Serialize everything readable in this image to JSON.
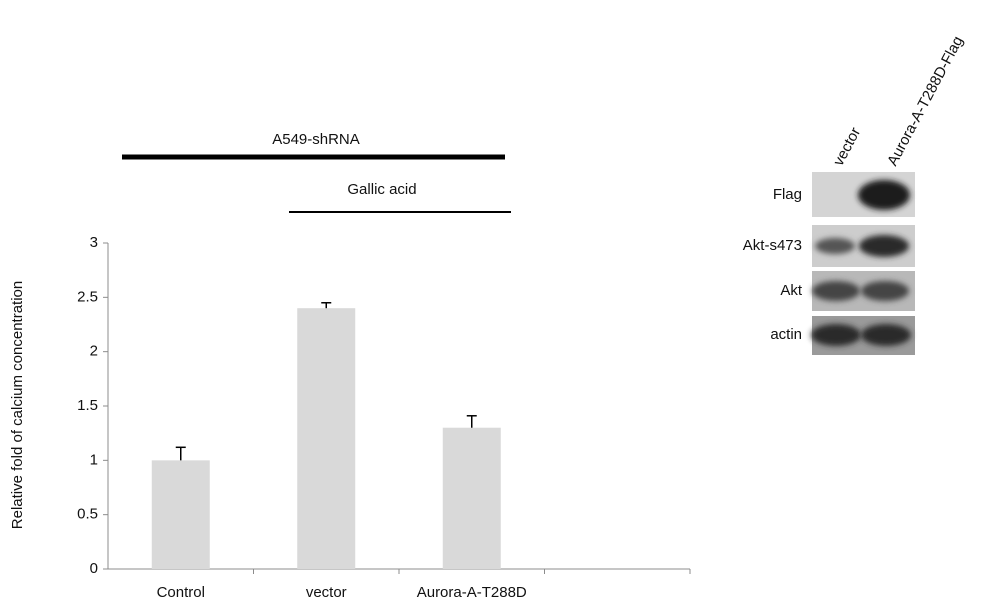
{
  "chart_data": {
    "type": "bar",
    "y_label": "Relative fold of calcium concentration",
    "categories": [
      "Control",
      "vector",
      "Aurora-A-T288D",
      null
    ],
    "values": [
      1,
      2.4,
      1.3,
      null
    ],
    "error": [
      0.12,
      0.05,
      0.11,
      null
    ],
    "color": "#d9d9d9",
    "ylim": [
      0,
      3
    ],
    "yticks": [
      0,
      0.5,
      1,
      1.5,
      2,
      2.5,
      3
    ],
    "annotations": [
      "A549-shRNA",
      "Gallic acid"
    ]
  },
  "blot": {
    "lanes": [
      "vector",
      "Aurora-A-T288D-Flag"
    ],
    "rows": [
      "Flag",
      "Akt-s473",
      "Akt",
      "actin"
    ]
  }
}
